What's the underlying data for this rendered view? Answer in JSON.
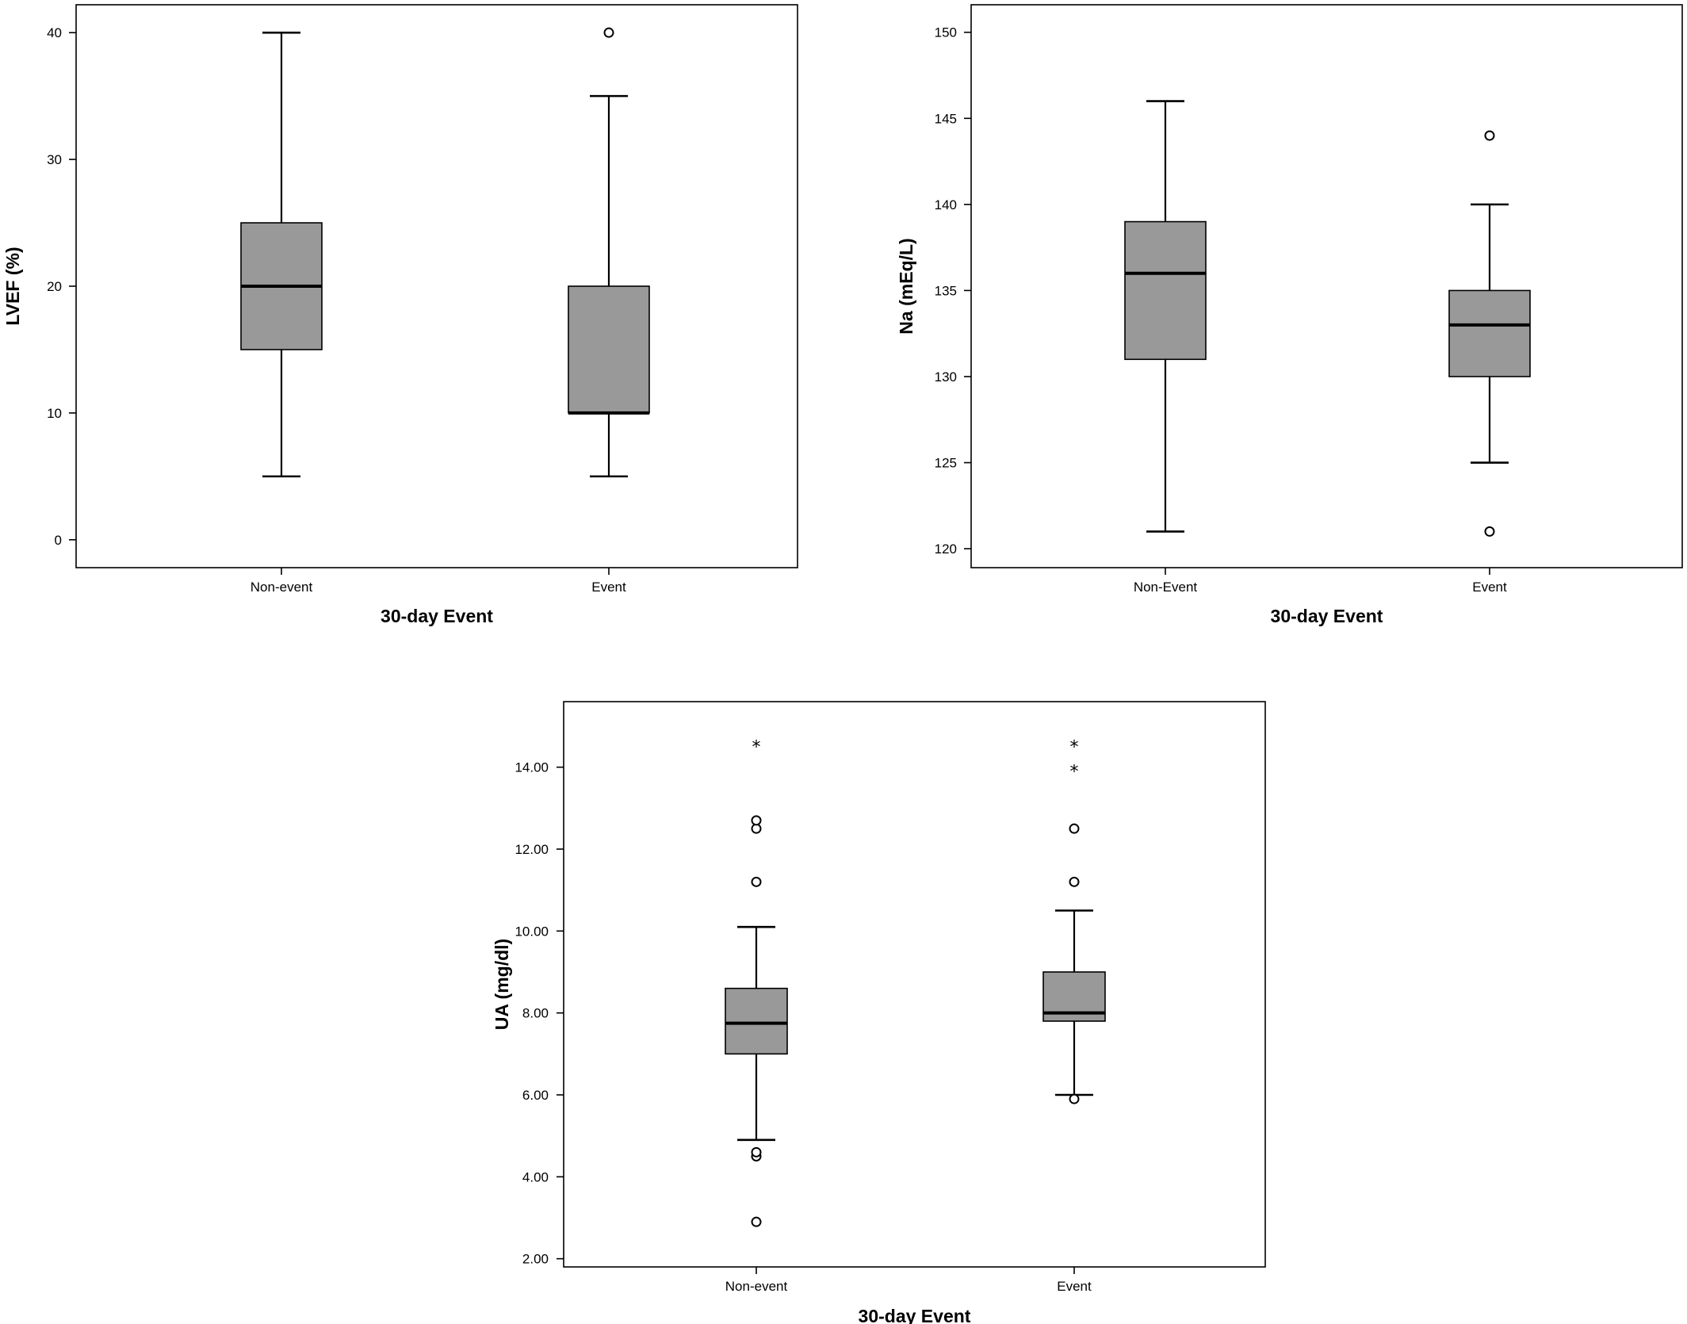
{
  "chart_data": [
    {
      "type": "boxplot",
      "xlabel": "30-day Event",
      "ylabel": "LVEF (%)",
      "categories": [
        "Non-event",
        "Event"
      ],
      "yticks": [
        0,
        10,
        20,
        30,
        40
      ],
      "yticklabels": [
        "0",
        "10",
        "20",
        "30",
        "40"
      ],
      "ylim": [
        -2.2,
        42.2
      ],
      "grid": false,
      "boxes": [
        {
          "category": "Non-event",
          "whisker_low": 5,
          "q1": 15,
          "median": 20,
          "q3": 25,
          "whisker_high": 40,
          "outliers": [],
          "extremes": []
        },
        {
          "category": "Event",
          "whisker_low": 5,
          "q1": 10,
          "median": 10,
          "q3": 20,
          "whisker_high": 35,
          "outliers": [
            40
          ],
          "extremes": []
        }
      ]
    },
    {
      "type": "boxplot",
      "xlabel": "30-day Event",
      "ylabel": "Na (mEq/L)",
      "categories": [
        "Non-Event",
        "Event"
      ],
      "yticks": [
        120,
        125,
        130,
        135,
        140,
        145,
        150
      ],
      "yticklabels": [
        "120",
        "125",
        "130",
        "135",
        "140",
        "145",
        "150"
      ],
      "ylim": [
        118.9,
        151.6
      ],
      "grid": false,
      "boxes": [
        {
          "category": "Non-Event",
          "whisker_low": 121,
          "q1": 131,
          "median": 136,
          "q3": 139,
          "whisker_high": 146,
          "outliers": [],
          "extremes": []
        },
        {
          "category": "Event",
          "whisker_low": 125,
          "q1": 130,
          "median": 133,
          "q3": 135,
          "whisker_high": 140,
          "outliers": [
            121,
            144
          ],
          "extremes": []
        }
      ]
    },
    {
      "type": "boxplot",
      "xlabel": "30-day Event",
      "ylabel": "UA (mg/dl)",
      "categories": [
        "Non-event",
        "Event"
      ],
      "yticks": [
        2,
        4,
        6,
        8,
        10,
        12,
        14
      ],
      "yticklabels": [
        "2.00",
        "4.00",
        "6.00",
        "8.00",
        "10.00",
        "12.00",
        "14.00"
      ],
      "ylim": [
        1.8,
        15.6
      ],
      "grid": false,
      "boxes": [
        {
          "category": "Non-event",
          "whisker_low": 4.9,
          "q1": 7.0,
          "median": 7.75,
          "q3": 8.6,
          "whisker_high": 10.1,
          "outliers": [
            2.9,
            4.5,
            4.6,
            11.2,
            12.5,
            12.7
          ],
          "extremes": [
            14.6
          ]
        },
        {
          "category": "Event",
          "whisker_low": 6.0,
          "q1": 7.8,
          "median": 8.0,
          "q3": 9.0,
          "whisker_high": 10.5,
          "outliers": [
            5.9,
            11.2,
            12.5
          ],
          "extremes": [
            14.0,
            14.6
          ]
        }
      ]
    }
  ]
}
